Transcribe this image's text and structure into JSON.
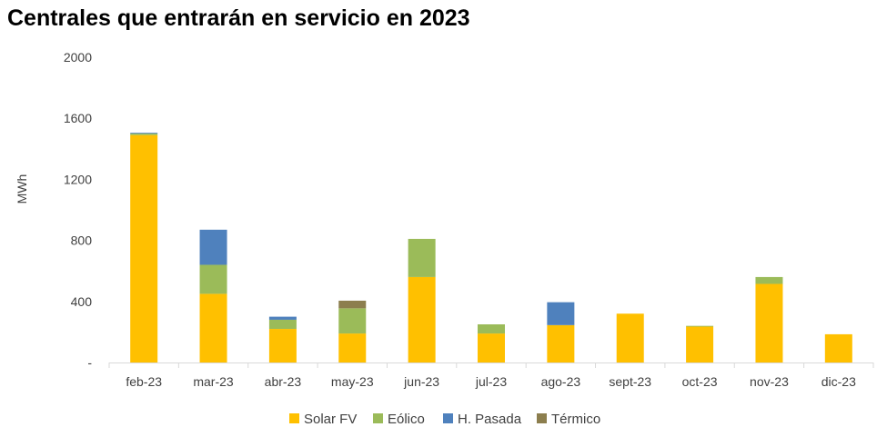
{
  "chart_data": {
    "type": "bar",
    "stacked": true,
    "title": "Centrales que entrarán en servicio en 2023",
    "ylabel": "MWh",
    "ylim": [
      0,
      2000
    ],
    "yticks": [
      {
        "value": 0,
        "label": "-"
      },
      {
        "value": 400,
        "label": "400"
      },
      {
        "value": 800,
        "label": "800"
      },
      {
        "value": 1200,
        "label": "1200"
      },
      {
        "value": 1600,
        "label": "1600"
      },
      {
        "value": 2000,
        "label": "2000"
      }
    ],
    "grid": false,
    "legend_position": "bottom",
    "categories": [
      "feb-23",
      "mar-23",
      "abr-23",
      "may-23",
      "jun-23",
      "jul-23",
      "ago-23",
      "sept-23",
      "oct-23",
      "nov-23",
      "dic-23"
    ],
    "series": [
      {
        "name": "Solar FV",
        "color": "#FFC000",
        "values": [
          1490,
          450,
          220,
          190,
          560,
          190,
          245,
          320,
          235,
          515,
          185
        ]
      },
      {
        "name": "Eólico",
        "color": "#9BBB59",
        "values": [
          10,
          190,
          60,
          165,
          250,
          60,
          0,
          0,
          5,
          45,
          0
        ]
      },
      {
        "name": "H. Pasada",
        "color": "#4F81BD",
        "values": [
          5,
          230,
          20,
          0,
          0,
          0,
          150,
          0,
          0,
          0,
          0
        ]
      },
      {
        "name": "Térmico",
        "color": "#8C7E4E",
        "values": [
          0,
          0,
          0,
          50,
          0,
          0,
          0,
          0,
          0,
          0,
          0
        ]
      }
    ]
  }
}
